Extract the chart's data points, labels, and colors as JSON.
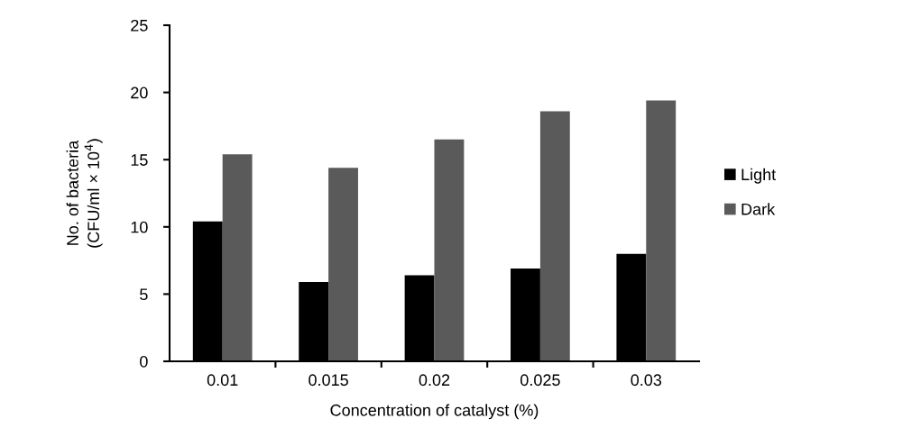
{
  "chart_data": {
    "type": "bar",
    "xlabel": "Concentration of catalyst (%)",
    "ylabel": "No. of bacteria\n(CFU/ml × 10$^{4}$)",
    "categories": [
      "0.01",
      "0.015",
      "0.02",
      "0.025",
      "0.03"
    ],
    "series": [
      {
        "name": "Light",
        "color": "#000000",
        "values": [
          10.4,
          5.9,
          6.4,
          6.9,
          8.0
        ]
      },
      {
        "name": "Dark",
        "color": "#5a5a5a",
        "values": [
          15.4,
          14.4,
          16.5,
          18.6,
          19.4
        ]
      }
    ],
    "ylim": [
      0,
      25
    ],
    "yticks": [
      0,
      5,
      10,
      15,
      20,
      25
    ],
    "grid": false,
    "legend": "right"
  }
}
